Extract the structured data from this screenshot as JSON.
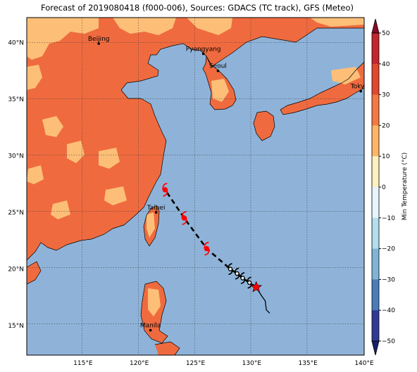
{
  "title": "Forecast of 2019080418 (f000-006), Sources: GDACS (TC track), GFS (Meteo)",
  "colors": {
    "ocean": "#8fb3d8",
    "land_warm": "#ef6b3f",
    "land_mild": "#fdbf77",
    "coast": "#000000",
    "track": "#000000",
    "storm_symbol": "#ff0000"
  },
  "map": {
    "lon_labels": [
      "115°E",
      "120°E",
      "125°E",
      "130°E",
      "135°E",
      "140°E"
    ],
    "lat_labels": [
      "15°N",
      "20°N",
      "25°N",
      "30°N",
      "35°N",
      "40°N"
    ],
    "cities": [
      {
        "name": "Beijing",
        "lon": 116.4,
        "lat": 39.9
      },
      {
        "name": "Pyongyang",
        "lon": 125.7,
        "lat": 39.0
      },
      {
        "name": "Seoul",
        "lon": 127.0,
        "lat": 37.5
      },
      {
        "name": "Tokyo",
        "lon": 139.7,
        "lat": 35.7
      },
      {
        "name": "Taipei",
        "lon": 121.5,
        "lat": 25.0
      },
      {
        "name": "Manila",
        "lon": 121.0,
        "lat": 14.6
      }
    ],
    "current_position": {
      "lon": 130.4,
      "lat": 18.4
    },
    "track_forecast": [
      {
        "lon": 130.4,
        "lat": 18.4
      },
      {
        "lon": 129.8,
        "lat": 18.8
      },
      {
        "lon": 129.2,
        "lat": 19.2
      },
      {
        "lon": 128.7,
        "lat": 19.6
      },
      {
        "lon": 128.1,
        "lat": 20.0
      },
      {
        "lon": 126.0,
        "lat": 21.8
      },
      {
        "lon": 124.0,
        "lat": 24.5
      },
      {
        "lon": 122.3,
        "lat": 27.0
      }
    ],
    "track_past": [
      {
        "lon": 131.6,
        "lat": 16.1
      },
      {
        "lon": 131.3,
        "lat": 16.4
      },
      {
        "lon": 131.2,
        "lat": 17.2
      },
      {
        "lon": 130.9,
        "lat": 17.6
      },
      {
        "lon": 130.4,
        "lat": 18.4
      }
    ]
  },
  "colorbar": {
    "label": "Min Temperature (°C)",
    "ticks": [
      "50",
      "40",
      "30",
      "20",
      "10",
      "0",
      "−10",
      "−20",
      "−30",
      "−40",
      "−50"
    ],
    "colors": [
      "#8b0a26",
      "#c1272d",
      "#e0492f",
      "#f47a45",
      "#fdb668",
      "#fff0c0",
      "#e6f5fb",
      "#b4dded",
      "#7fb4d6",
      "#4a7cb8",
      "#2f3b92",
      "#1a1e6e"
    ]
  }
}
